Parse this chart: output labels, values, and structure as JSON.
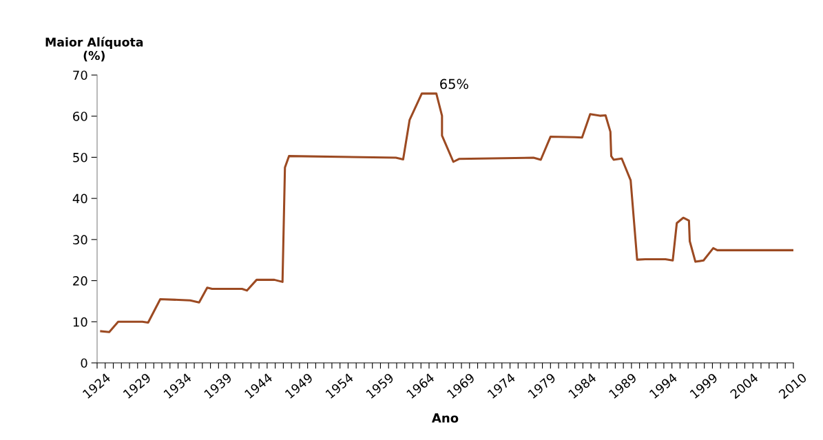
{
  "chart_data": {
    "type": "line",
    "ylabel": "Maior Alíquota\n(%)",
    "xlabel": "Ano",
    "annotations": [
      {
        "text": "65%",
        "x": 1965.9,
        "y": 65.5
      }
    ],
    "x": [
      1924.5,
      1925.5,
      1926.6,
      1929.6,
      1930.3,
      1931.8,
      1935.5,
      1936.6,
      1937.6,
      1938.2,
      1941.9,
      1942.5,
      1943.7,
      1945.9,
      1946.9,
      1947.2,
      1947.7,
      1960.9,
      1961.8,
      1962.6,
      1964.1,
      1965.9,
      1966.6,
      1966.6,
      1968.0,
      1968.7,
      1977.9,
      1978.8,
      1980.0,
      1983.0,
      1983.9,
      1984.9,
      1986.1,
      1986.8,
      1987.4,
      1987.5,
      1987.8,
      1988.8,
      1989.9,
      1990.7,
      1991.7,
      1994.2,
      1995.1,
      1995.6,
      1996.4,
      1997.1,
      1997.2,
      1997.9,
      1998.9,
      2000.1,
      2000.6,
      2009.9
    ],
    "series": [
      {
        "color": "#9c4a22",
        "values": [
          7.7,
          7.5,
          10.0,
          10.0,
          9.8,
          15.5,
          15.2,
          14.7,
          18.3,
          18.0,
          18.0,
          17.6,
          20.2,
          20.2,
          19.7,
          47.5,
          50.3,
          49.9,
          49.5,
          59.1,
          65.5,
          65.5,
          60.1,
          55.3,
          48.9,
          49.6,
          49.9,
          49.4,
          55.0,
          54.9,
          54.8,
          60.5,
          60.1,
          60.2,
          56.2,
          50.3,
          49.4,
          49.7,
          44.4,
          25.1,
          25.2,
          25.2,
          24.9,
          34.0,
          35.3,
          34.6,
          29.6,
          24.6,
          24.9,
          27.9,
          27.4,
          27.4
        ]
      }
    ],
    "xlim": [
      1924,
      2010
    ],
    "ylim": [
      0,
      70
    ],
    "yticks": [
      0,
      10,
      20,
      30,
      40,
      50,
      60,
      70
    ],
    "xticks": [
      1924,
      {
        "value": 1925,
        "label": null
      },
      {
        "value": 1926,
        "label": null
      },
      {
        "value": 1927,
        "label": null
      },
      {
        "value": 1928,
        "label": null
      },
      1929,
      {
        "value": 1930,
        "label": null
      },
      {
        "value": 1931,
        "label": null
      },
      {
        "value": 1932,
        "label": null
      },
      {
        "value": 1933,
        "label": null
      },
      1934,
      {
        "value": 1935,
        "label": null
      },
      {
        "value": 1936,
        "label": null
      },
      {
        "value": 1937,
        "label": null
      },
      {
        "value": 1938,
        "label": null
      },
      1939,
      {
        "value": 1940,
        "label": null
      },
      {
        "value": 1941,
        "label": null
      },
      {
        "value": 1942,
        "label": null
      },
      {
        "value": 1943,
        "label": null
      },
      1944,
      {
        "value": 1945,
        "label": null
      },
      {
        "value": 1946,
        "label": null
      },
      {
        "value": 1947,
        "label": null
      },
      {
        "value": 1948,
        "label": null
      },
      1949,
      {
        "value": 1950,
        "label": null
      },
      {
        "value": 1951,
        "label": null
      },
      {
        "value": 1952,
        "label": null
      },
      {
        "value": 1953,
        "label": null
      },
      1954,
      {
        "value": 1955,
        "label": null
      },
      {
        "value": 1956,
        "label": null
      },
      {
        "value": 1957,
        "label": null
      },
      {
        "value": 1958,
        "label": null
      },
      1959,
      {
        "value": 1960,
        "label": null
      },
      {
        "value": 1961,
        "label": null
      },
      {
        "value": 1962,
        "label": null
      },
      {
        "value": 1963,
        "label": null
      },
      1964,
      {
        "value": 1965,
        "label": null
      },
      {
        "value": 1966,
        "label": null
      },
      {
        "value": 1967,
        "label": null
      },
      {
        "value": 1968,
        "label": null
      },
      1969,
      {
        "value": 1970,
        "label": null
      },
      {
        "value": 1971,
        "label": null
      },
      {
        "value": 1972,
        "label": null
      },
      {
        "value": 1973,
        "label": null
      },
      1974,
      {
        "value": 1975,
        "label": null
      },
      {
        "value": 1976,
        "label": null
      },
      {
        "value": 1977,
        "label": null
      },
      {
        "value": 1978,
        "label": null
      },
      1979,
      {
        "value": 1980,
        "label": null
      },
      {
        "value": 1981,
        "label": null
      },
      {
        "value": 1982,
        "label": null
      },
      {
        "value": 1983,
        "label": null
      },
      1984,
      {
        "value": 1985,
        "label": null
      },
      {
        "value": 1986,
        "label": null
      },
      {
        "value": 1987,
        "label": null
      },
      {
        "value": 1988,
        "label": null
      },
      1989,
      {
        "value": 1990,
        "label": null
      },
      {
        "value": 1991,
        "label": null
      },
      {
        "value": 1992,
        "label": null
      },
      {
        "value": 1993,
        "label": null
      },
      1994,
      {
        "value": 1995,
        "label": null
      },
      {
        "value": 1996,
        "label": null
      },
      {
        "value": 1997,
        "label": null
      },
      {
        "value": 1998,
        "label": null
      },
      1999,
      {
        "value": 2000,
        "label": null
      },
      {
        "value": 2001,
        "label": null
      },
      {
        "value": 2002,
        "label": null
      },
      {
        "value": 2003,
        "label": null
      },
      2004,
      {
        "value": 2005,
        "label": null
      },
      {
        "value": 2006,
        "label": null
      },
      {
        "value": 2007,
        "label": null
      },
      {
        "value": 2008,
        "label": null
      },
      {
        "value": 2009,
        "label": null
      },
      2010
    ],
    "grid": false,
    "marker": "none",
    "line_style": "solid"
  }
}
